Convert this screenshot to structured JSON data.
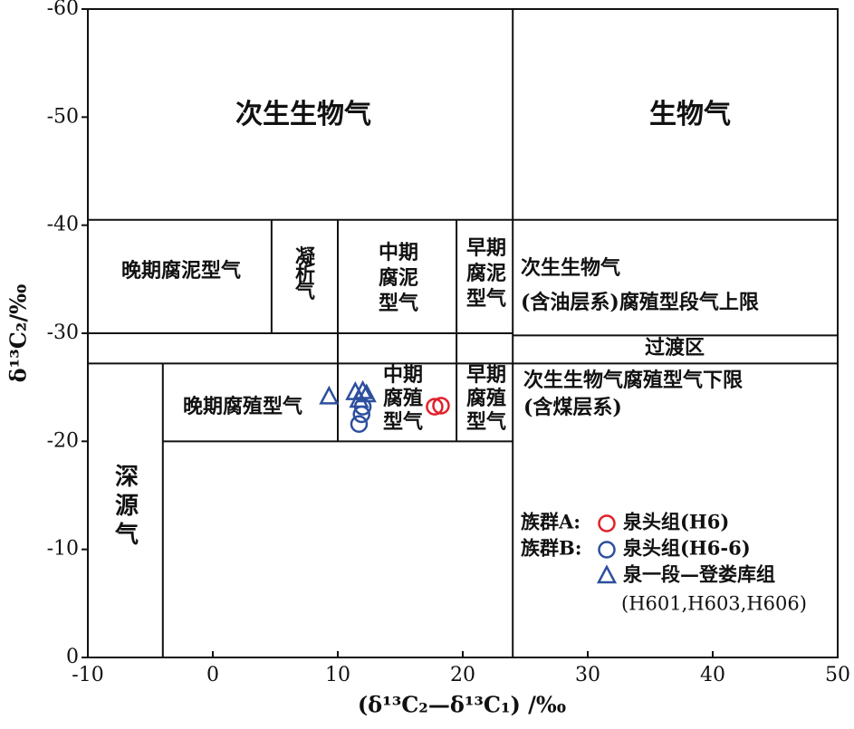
{
  "chart_data": {
    "type": "scatter",
    "xlabel": "(δ¹³C₂—δ¹³C₁) /‰",
    "ylabel": "δ¹³C₂/‰",
    "xlim": [
      -10,
      50
    ],
    "xticks": [
      -10,
      0,
      10,
      20,
      30,
      40,
      50
    ],
    "ylim": [
      0,
      -60
    ],
    "yticks": [
      0,
      -10,
      -20,
      -30,
      -40,
      -50,
      -60
    ],
    "boundaries": [
      [
        24,
        0,
        24,
        -60
      ],
      [
        -10,
        -40.5,
        50,
        -40.5
      ],
      [
        4.7,
        -40.5,
        4.7,
        -30
      ],
      [
        10,
        -40.5,
        10,
        -20
      ],
      [
        19.5,
        -40.5,
        19.5,
        -20
      ],
      [
        -10,
        -30,
        24,
        -30
      ],
      [
        24,
        -29.8,
        50,
        -29.8
      ],
      [
        -10,
        -27.2,
        50,
        -27.2
      ],
      [
        -4,
        -27.2,
        -4,
        0
      ],
      [
        -4,
        -20,
        24,
        -20
      ]
    ],
    "regions": [
      {
        "lines": [
          "次生生物气"
        ]
      },
      {
        "lines": [
          "生物气"
        ]
      },
      {
        "lines": [
          "晚期腐泥型气"
        ]
      },
      {
        "lines": [
          "凝",
          "析",
          "气"
        ]
      },
      {
        "lines": [
          "中期",
          "腐泥",
          "型气"
        ]
      },
      {
        "lines": [
          "早期",
          "腐泥",
          "型气"
        ]
      },
      {
        "lines": [
          "次生生物气",
          "(含油层系)腐殖型段气上限"
        ]
      },
      {
        "lines": [
          "过渡区"
        ]
      },
      {
        "lines": [
          "晚期腐殖型气"
        ]
      },
      {
        "lines": [
          "中期",
          "腐殖",
          "型气"
        ]
      },
      {
        "lines": [
          "早期",
          "腐殖",
          "型气"
        ]
      },
      {
        "lines": [
          "次生生物气腐殖型气下限",
          "(含煤层系)"
        ]
      },
      {
        "lines": [
          "深",
          "源",
          "气"
        ]
      }
    ],
    "series": [
      {
        "name": "泉头组(H6)",
        "group": "族群A:",
        "marker": "circle",
        "color": "#e0202a",
        "x": [
          17.75,
          18.26
        ],
        "values": [
          -23.2,
          -23.3
        ]
      },
      {
        "name": "泉头组(H6-6)",
        "group": "族群B:",
        "marker": "circle",
        "color": "#2d4f9e",
        "x": [
          11.7,
          11.9,
          12.0
        ],
        "values": [
          -21.6,
          -22.5,
          -23.2
        ]
      },
      {
        "name": "泉一段—登娄库组",
        "note": "(H601,H603,H606)",
        "marker": "triangle",
        "color": "#2d4f9e",
        "x": [
          9.3,
          11.4,
          12.0,
          12.3,
          11.7
        ],
        "values": [
          -24.1,
          -24.5,
          -24.6,
          -24.3,
          -23.8
        ]
      }
    ]
  }
}
